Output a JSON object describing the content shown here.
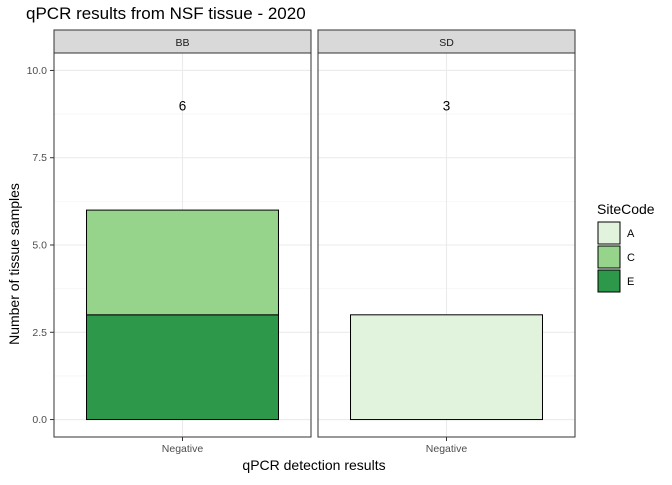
{
  "chart_data": {
    "type": "bar",
    "title": "qPCR results from NSF tissue - 2020",
    "xlabel": "qPCR detection results",
    "ylabel": "Number of tissue samples",
    "ylim": [
      -0.5,
      10.5
    ],
    "yticks": [
      0.0,
      2.5,
      5.0,
      7.5,
      10.0
    ],
    "ytick_labels": [
      "0.0",
      "2.5",
      "5.0",
      "7.5",
      "10.0"
    ],
    "grid": true,
    "legend": {
      "title": "SiteCode",
      "placement": "right",
      "entries": [
        {
          "label": "A",
          "color": "#e1f3dc"
        },
        {
          "label": "C",
          "color": "#96d38b"
        },
        {
          "label": "E",
          "color": "#2d9849"
        }
      ]
    },
    "panels": [
      {
        "name": "BB",
        "categories": [
          "Negative"
        ],
        "stacks": [
          {
            "site": "E",
            "value": 3,
            "color": "#2d9849"
          },
          {
            "site": "C",
            "value": 3,
            "color": "#96d38b"
          }
        ],
        "total_label": "6"
      },
      {
        "name": "SD",
        "categories": [
          "Negative"
        ],
        "stacks": [
          {
            "site": "A",
            "value": 3,
            "color": "#e1f3dc"
          }
        ],
        "total_label": "3"
      }
    ],
    "label_y": 9
  }
}
